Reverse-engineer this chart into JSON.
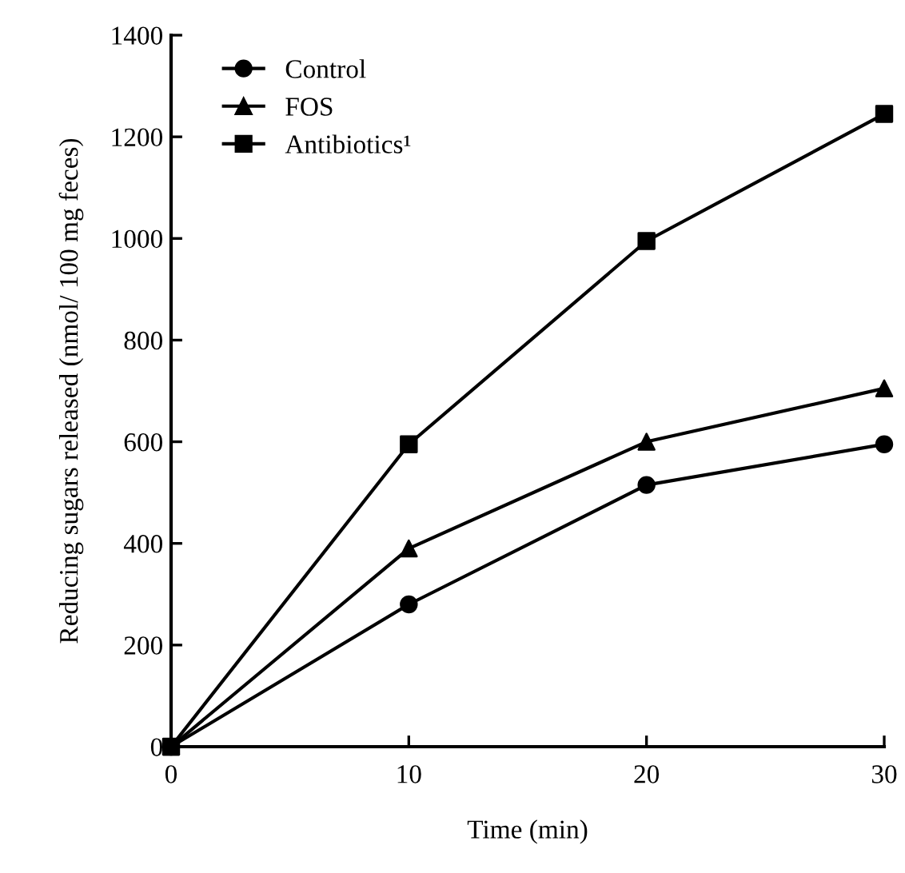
{
  "chart_data": {
    "type": "line",
    "xlabel": "Time (min)",
    "ylabel": "Reducing sugars released (nmol/ 100 mg feces)",
    "x": [
      0,
      10,
      20,
      30
    ],
    "series": [
      {
        "name": "Control",
        "color": "#000000",
        "marker": "circle",
        "values": [
          0,
          280,
          515,
          595
        ]
      },
      {
        "name": "FOS",
        "color": "#000000",
        "marker": "triangle",
        "values": [
          0,
          390,
          600,
          705
        ]
      },
      {
        "name": "Antibiotics¹",
        "color": "#000000",
        "marker": "square",
        "values": [
          0,
          595,
          995,
          1245
        ]
      }
    ],
    "xlim": [
      0,
      30
    ],
    "xticks": [
      0,
      10,
      20,
      30
    ],
    "ylim": [
      0,
      1400
    ],
    "yticks": [
      0,
      200,
      400,
      600,
      800,
      1000,
      1200,
      1400
    ],
    "grid": false,
    "legend": "top left",
    "line_style": "solid"
  }
}
